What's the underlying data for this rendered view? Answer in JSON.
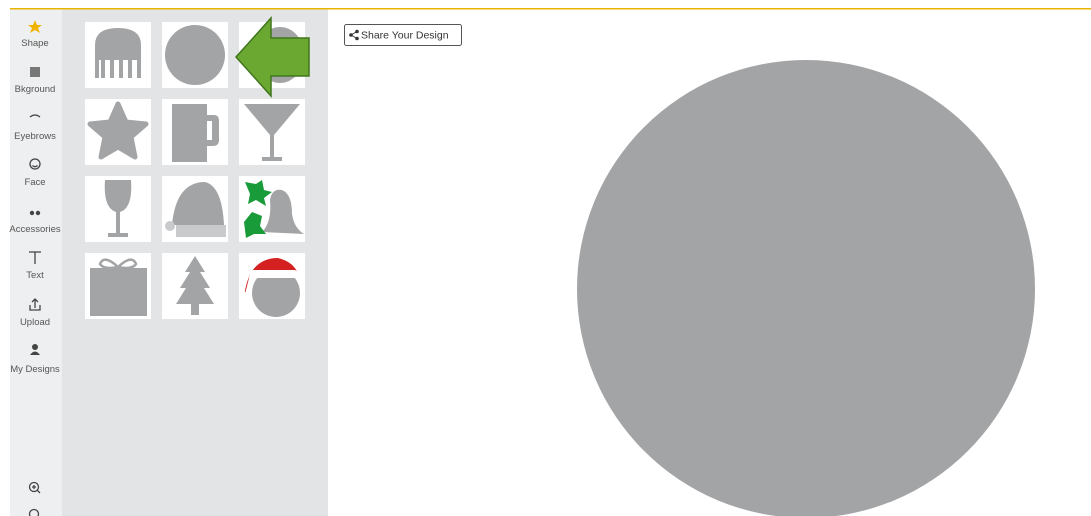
{
  "sidebar": {
    "items": [
      "Shape",
      "Bkground",
      "Eyebrows",
      "Face",
      "Accessories",
      "Text",
      "Upload",
      "My Designs"
    ]
  },
  "toolbar": {
    "share_button": "Share Your Design"
  }
}
